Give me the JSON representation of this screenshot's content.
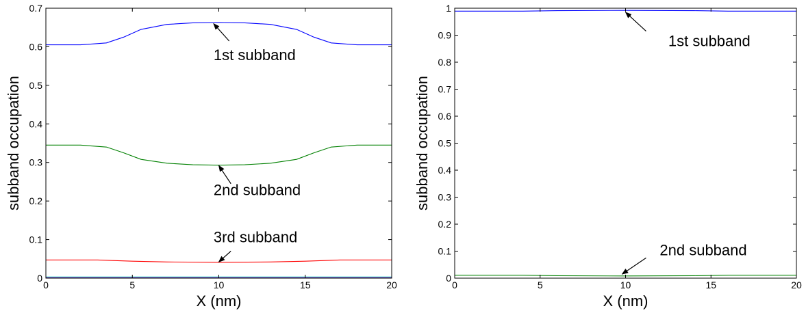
{
  "chart_data": [
    {
      "type": "line",
      "xlabel": "X (nm)",
      "ylabel": "subband occupation",
      "xlim": [
        0,
        20
      ],
      "ylim": [
        0,
        0.7
      ],
      "xticks": [
        "0",
        "5",
        "10",
        "15",
        "20"
      ],
      "yticks": [
        "0",
        "0.1",
        "0.2",
        "0.3",
        "0.4",
        "0.5",
        "0.6",
        "0.7"
      ],
      "grid": false,
      "series": [
        {
          "color": "#0000ff",
          "x": [
            0,
            2,
            3.5,
            4.5,
            5.5,
            7,
            8.5,
            10,
            11.5,
            13,
            14.5,
            15.5,
            16.5,
            18,
            20
          ],
          "values": [
            0.605,
            0.605,
            0.61,
            0.625,
            0.645,
            0.658,
            0.662,
            0.663,
            0.662,
            0.658,
            0.645,
            0.625,
            0.61,
            0.605,
            0.605
          ]
        },
        {
          "color": "#008000",
          "x": [
            0,
            2,
            3.5,
            4.5,
            5.5,
            7,
            8.5,
            10,
            11.5,
            13,
            14.5,
            15.5,
            16.5,
            18,
            20
          ],
          "values": [
            0.345,
            0.345,
            0.34,
            0.325,
            0.308,
            0.298,
            0.294,
            0.293,
            0.294,
            0.298,
            0.308,
            0.325,
            0.34,
            0.345,
            0.345
          ]
        },
        {
          "color": "#ff0000",
          "x": [
            0,
            3,
            5,
            7,
            10,
            13,
            15,
            17,
            20
          ],
          "values": [
            0.047,
            0.047,
            0.044,
            0.042,
            0.041,
            0.042,
            0.044,
            0.047,
            0.047
          ]
        },
        {
          "color": "#00bfbf",
          "x": [
            0,
            20
          ],
          "values": [
            0.003,
            0.003
          ]
        },
        {
          "color": "#bf00bf",
          "x": [
            0,
            20
          ],
          "values": [
            0.001,
            0.001
          ]
        }
      ],
      "annotations": [
        {
          "text": "1st subband",
          "tx": 9.7,
          "ty": 0.565,
          "ax": 9.7,
          "ay": 0.66,
          "from": [
            10.6,
            0.615
          ]
        },
        {
          "text": "2nd subband",
          "tx": 9.7,
          "ty": 0.215,
          "ax": 10.0,
          "ay": 0.292,
          "from": [
            10.7,
            0.245
          ]
        },
        {
          "text": "3rd subband",
          "tx": 9.7,
          "ty": 0.093,
          "ax": 10.0,
          "ay": 0.042,
          "from": [
            10.7,
            0.07
          ]
        }
      ]
    },
    {
      "type": "line",
      "xlabel": "X (nm)",
      "ylabel": "subband occupation",
      "xlim": [
        0,
        20
      ],
      "ylim": [
        0,
        1
      ],
      "xticks": [
        "0",
        "5",
        "10",
        "15",
        "20"
      ],
      "yticks": [
        "0",
        "0.1",
        "0.2",
        "0.3",
        "0.4",
        "0.5",
        "0.6",
        "0.7",
        "0.8",
        "0.9",
        "1"
      ],
      "grid": false,
      "series": [
        {
          "color": "#0000ff",
          "x": [
            0,
            4,
            6,
            10,
            14,
            16,
            20
          ],
          "values": [
            0.989,
            0.989,
            0.991,
            0.992,
            0.991,
            0.989,
            0.989
          ]
        },
        {
          "color": "#008000",
          "x": [
            0,
            4,
            6,
            10,
            14,
            16,
            20
          ],
          "values": [
            0.011,
            0.011,
            0.009,
            0.008,
            0.009,
            0.011,
            0.011
          ]
        }
      ],
      "annotations": [
        {
          "text": "1st subband",
          "tx": 12.5,
          "ty": 0.86,
          "ax": 10.0,
          "ay": 0.985,
          "from": [
            11.2,
            0.915
          ]
        },
        {
          "text": "2nd subband",
          "tx": 12.0,
          "ty": 0.085,
          "ax": 9.8,
          "ay": 0.015,
          "from": [
            11.2,
            0.075
          ]
        }
      ]
    }
  ]
}
